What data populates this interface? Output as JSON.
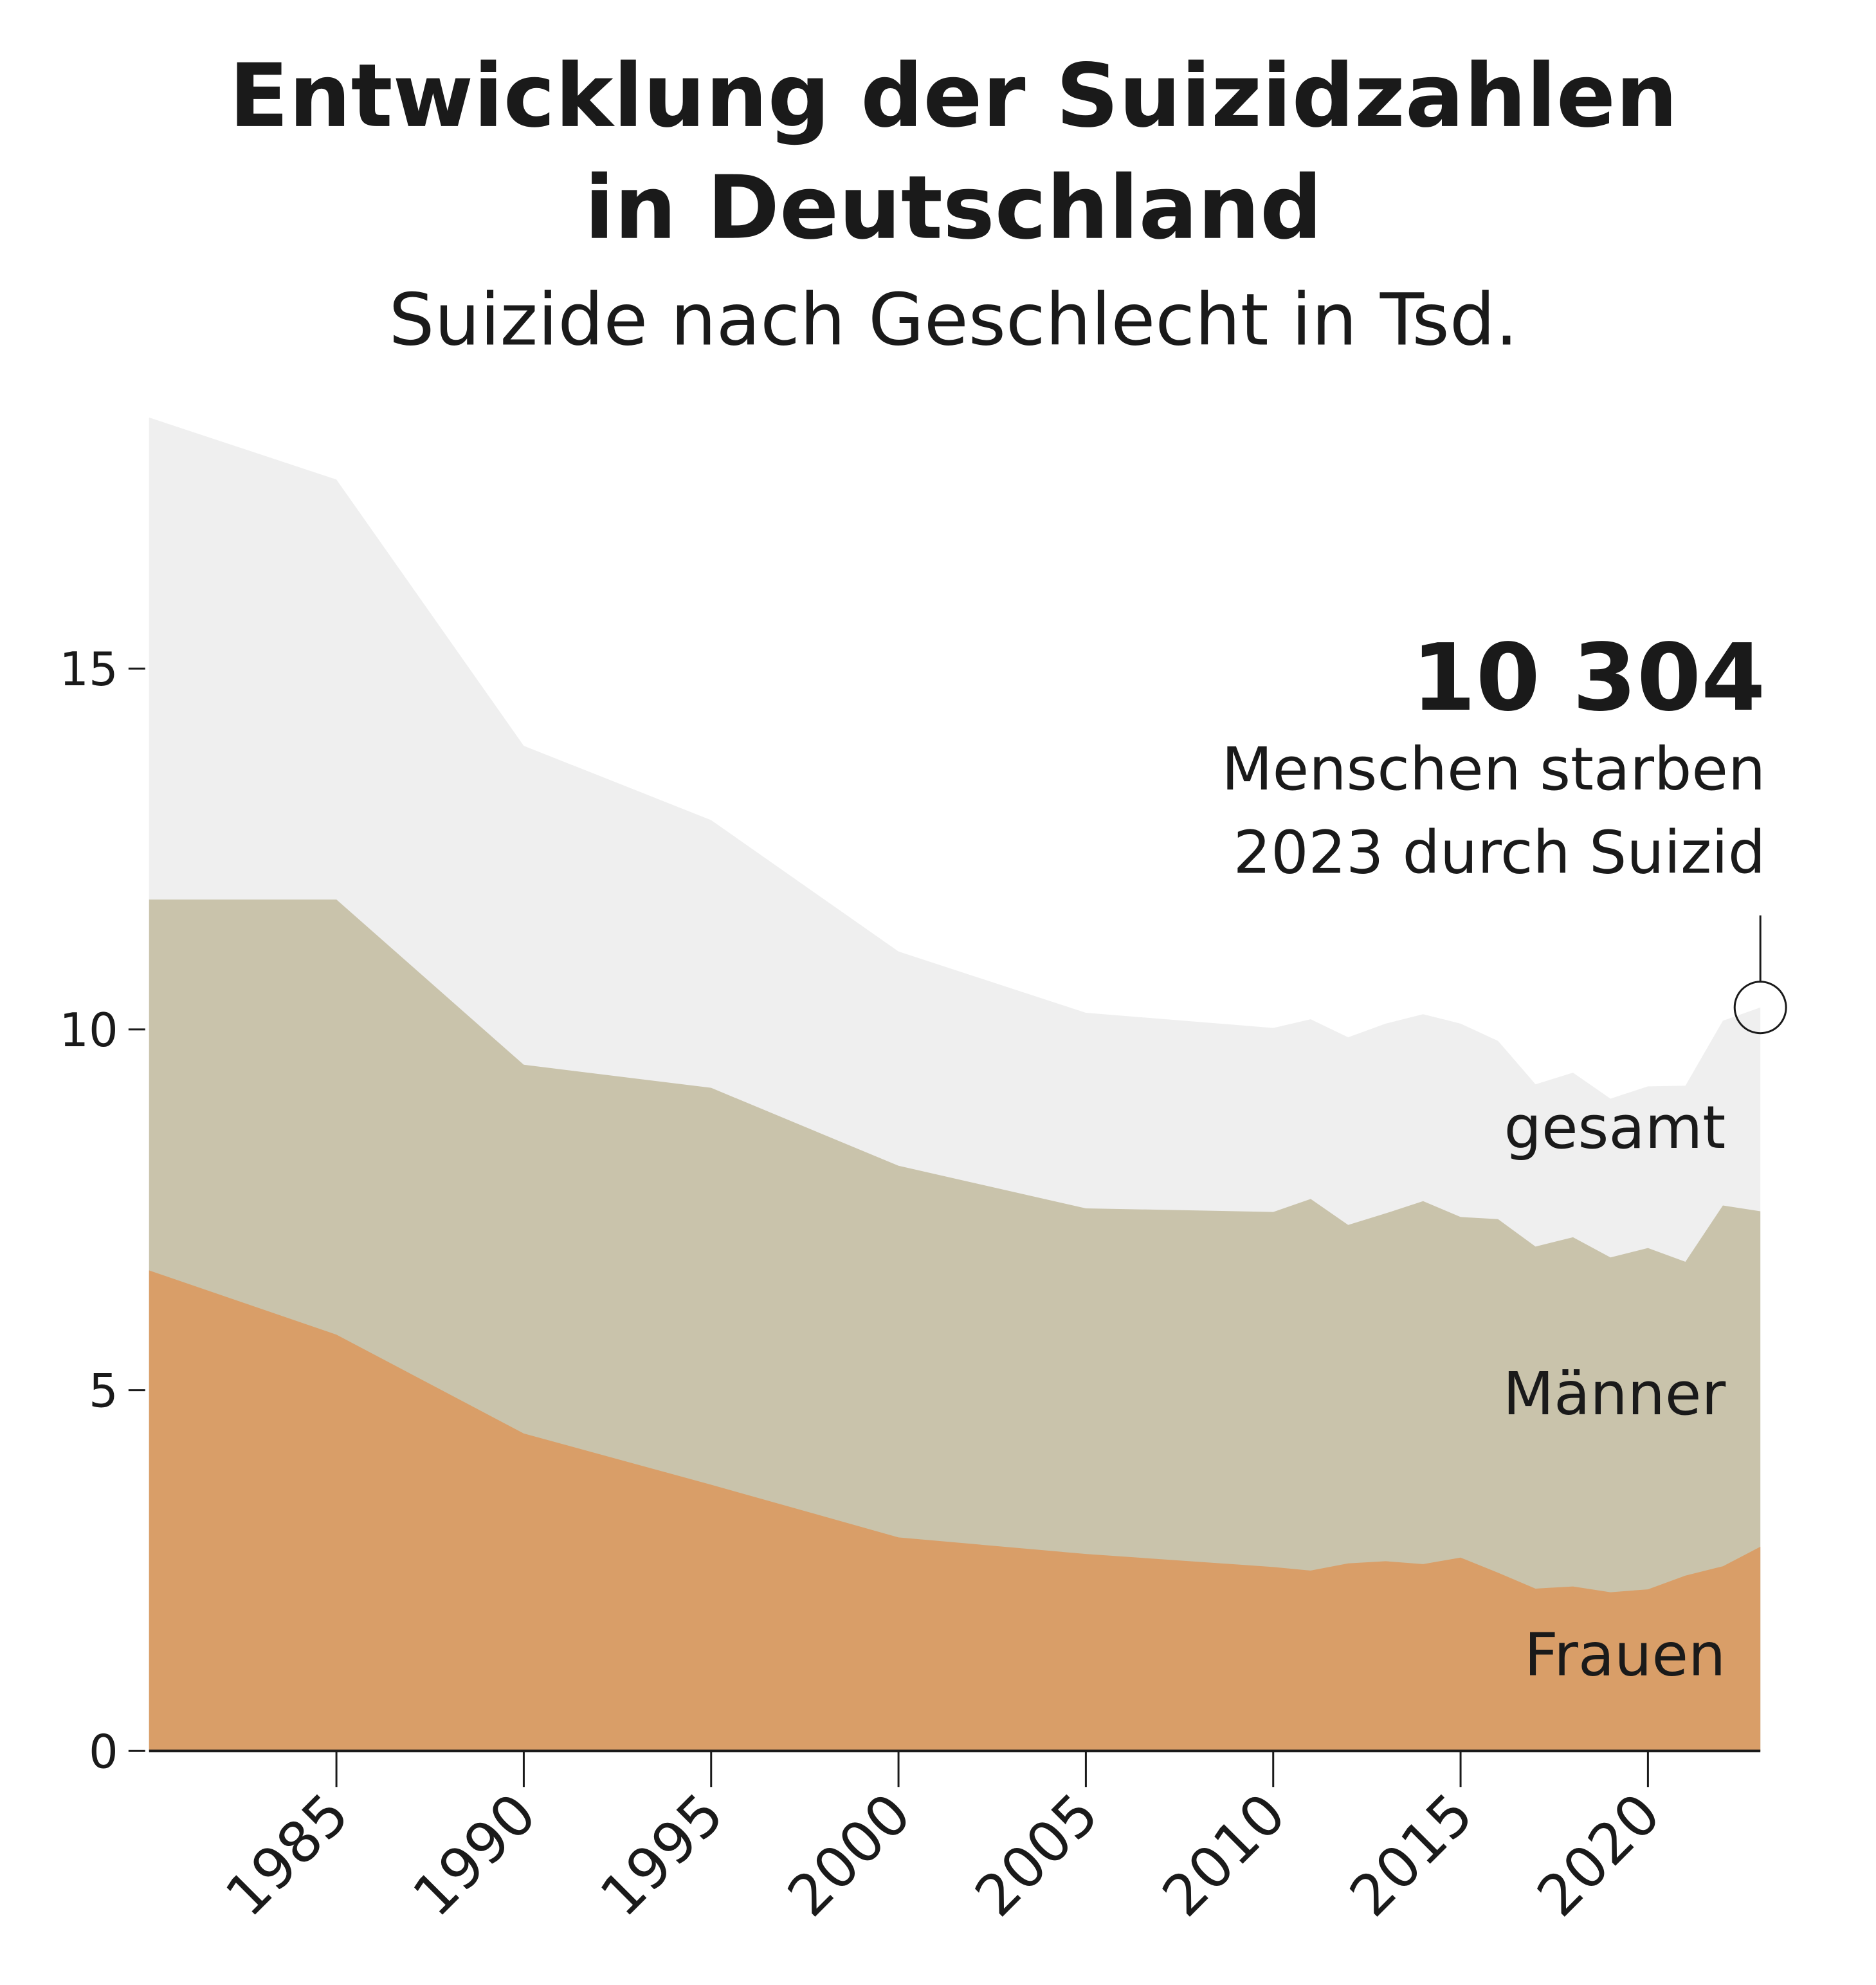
{
  "chart_data": {
    "type": "area",
    "title": [
      "Entwicklung der Suizidzahlen",
      "in Deutschland"
    ],
    "subtitle": "Suizide nach Geschlecht in Tsd.",
    "x": [
      1980,
      1985,
      1990,
      1995,
      2000,
      2005,
      2010,
      2011,
      2012,
      2013,
      2014,
      2015,
      2016,
      2017,
      2018,
      2019,
      2020,
      2021,
      2022,
      2023
    ],
    "series": [
      {
        "name": "gesamt",
        "color": "#efefef",
        "values": [
          18.48,
          17.62,
          13.93,
          12.9,
          11.08,
          10.23,
          10.02,
          10.14,
          9.89,
          10.08,
          10.21,
          10.08,
          9.84,
          9.24,
          9.4,
          9.04,
          9.21,
          9.22,
          10.12,
          10.304
        ]
      },
      {
        "name": "Männer",
        "color": "#c9c3ab",
        "values": [
          11.8,
          11.8,
          9.51,
          9.19,
          8.11,
          7.52,
          7.47,
          7.65,
          7.29,
          7.45,
          7.62,
          7.4,
          7.37,
          6.99,
          7.12,
          6.84,
          6.97,
          6.78,
          7.56,
          7.48
        ]
      },
      {
        "name": "Frauen",
        "color": "#d99e68",
        "values": [
          6.66,
          5.77,
          4.4,
          3.69,
          2.96,
          2.73,
          2.55,
          2.5,
          2.6,
          2.63,
          2.59,
          2.68,
          2.47,
          2.25,
          2.28,
          2.2,
          2.24,
          2.43,
          2.56,
          2.83
        ]
      }
    ],
    "xlim": [
      1980,
      2023
    ],
    "xticks": [
      1985,
      1990,
      1995,
      2000,
      2005,
      2010,
      2015,
      2020
    ],
    "ylim": [
      0,
      18.5
    ],
    "yticks": [
      0,
      5,
      10,
      15
    ],
    "annotation": {
      "label": "10 304",
      "text": [
        "Menschen starben",
        "2023 durch Suizid"
      ]
    }
  }
}
